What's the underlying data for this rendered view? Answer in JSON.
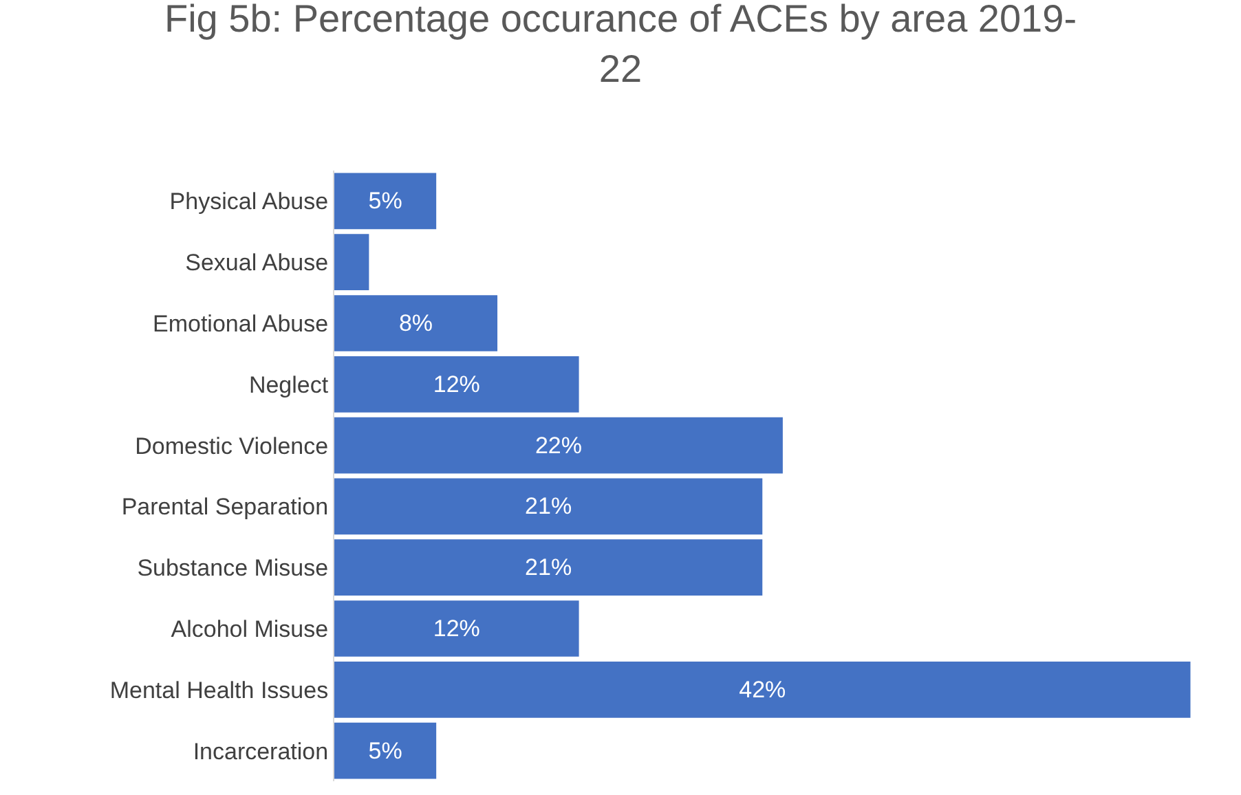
{
  "chart_data": {
    "type": "bar",
    "orientation": "horizontal",
    "title": "Fig 5b: Percentage occurance of ACEs by area 2019-22",
    "categories": [
      "Physical Abuse",
      "Sexual Abuse",
      "Emotional Abuse",
      "Neglect",
      "Domestic Violence",
      "Parental Separation",
      "Substance Misuse",
      "Alcohol Misuse",
      "Mental Health Issues",
      "Incarceration"
    ],
    "values": [
      5,
      1.7,
      8,
      12,
      22,
      21,
      21,
      12,
      42,
      5
    ],
    "value_labels": [
      "5%",
      null,
      "8%",
      "12%",
      "22%",
      "21%",
      "21%",
      "12%",
      "42%",
      "5%"
    ],
    "color": "#4472c4"
  }
}
